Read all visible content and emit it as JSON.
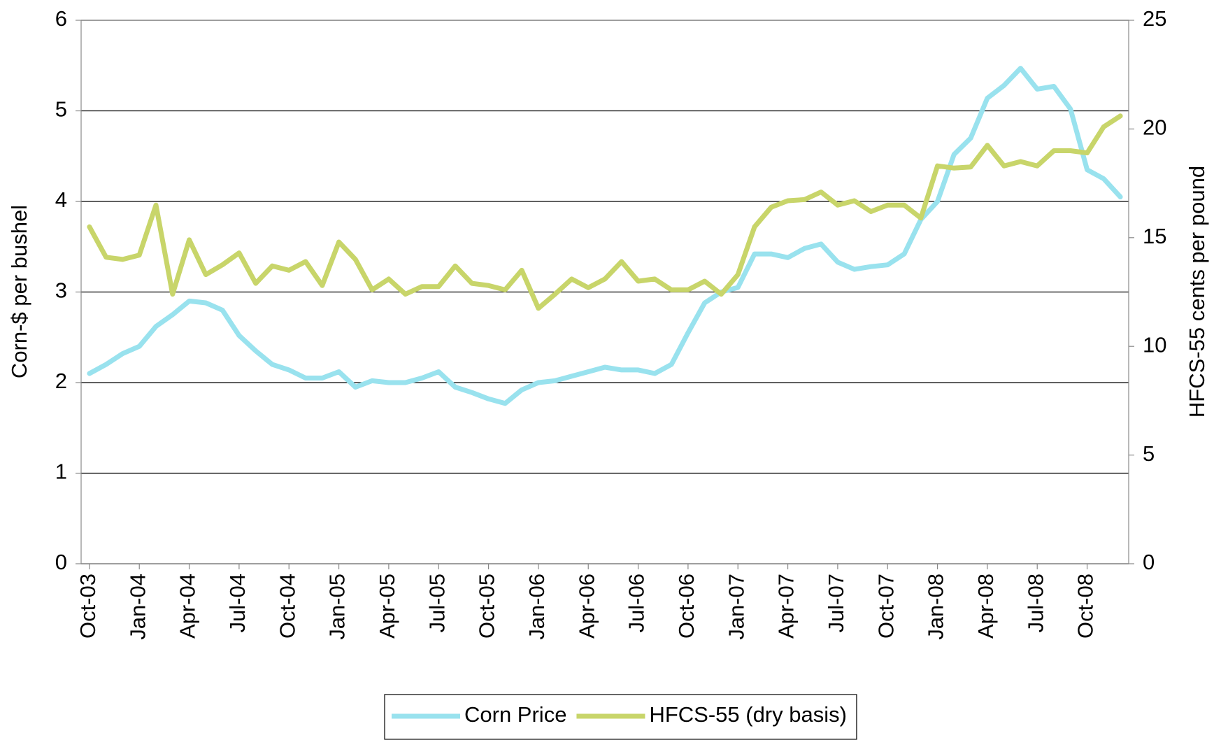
{
  "chart_data": {
    "type": "line",
    "categories": [
      "Oct-03",
      null,
      null,
      "Jan-04",
      null,
      null,
      "Apr-04",
      null,
      null,
      "Jul-04",
      null,
      null,
      "Oct-04",
      null,
      null,
      "Jan-05",
      null,
      null,
      "Apr-05",
      null,
      null,
      "Jul-05",
      null,
      null,
      "Oct-05",
      null,
      null,
      "Jan-06",
      null,
      null,
      "Apr-06",
      null,
      null,
      "Jul-06",
      null,
      null,
      "Oct-06",
      null,
      null,
      "Jan-07",
      null,
      null,
      "Apr-07",
      null,
      null,
      "Jul-07",
      null,
      null,
      "Oct-07",
      null,
      null,
      "Jan-08",
      null,
      null,
      "Apr-08",
      null,
      null,
      "Jul-08",
      null,
      null,
      "Oct-08",
      null,
      null
    ],
    "y_label": "Corn-$ per bushel",
    "y2_label": "HFCS-55 cents per pound",
    "ylim": [
      0,
      6
    ],
    "yticks": [
      0,
      1,
      2,
      3,
      4,
      5,
      6
    ],
    "y2lim": [
      0,
      25
    ],
    "y2ticks": [
      0,
      5,
      10,
      15,
      20,
      25
    ],
    "grid": true,
    "legend": "bottom",
    "series": [
      {
        "name": "Corn Price",
        "color": "#99e2ee",
        "values": [
          2.1,
          2.2,
          2.32,
          2.4,
          2.62,
          2.75,
          2.9,
          2.88,
          2.8,
          2.52,
          2.35,
          2.2,
          2.14,
          2.05,
          2.05,
          2.12,
          1.95,
          2.02,
          2.0,
          2.0,
          2.05,
          2.12,
          1.95,
          1.89,
          1.82,
          1.77,
          1.92,
          2.0,
          2.02,
          2.07,
          2.12,
          2.17,
          2.14,
          2.14,
          2.1,
          2.2,
          2.55,
          2.88,
          3.0,
          3.05,
          3.42,
          3.42,
          3.38,
          3.48,
          3.53,
          3.33,
          3.25,
          3.28,
          3.3,
          3.42,
          3.8,
          4.0,
          4.52,
          4.7,
          5.14,
          5.28,
          5.47,
          5.24,
          5.27,
          5.02,
          4.35,
          4.25,
          4.05
        ]
      },
      {
        "name": "HFCS-55 (dry basis)",
        "color": "#c8d56a",
        "axis": "y2",
        "values": [
          15.5,
          14.1,
          14.0,
          14.2,
          16.5,
          12.4,
          14.9,
          13.3,
          13.75,
          14.3,
          12.9,
          13.7,
          13.5,
          13.9,
          12.8,
          14.8,
          14.0,
          12.6,
          13.1,
          12.4,
          12.75,
          12.75,
          13.7,
          12.9,
          12.8,
          12.6,
          13.5,
          11.75,
          12.4,
          13.1,
          12.7,
          13.1,
          13.9,
          13.0,
          13.1,
          12.6,
          12.6,
          13.0,
          12.4,
          13.3,
          15.5,
          16.4,
          16.7,
          16.75,
          17.1,
          16.5,
          16.7,
          16.2,
          16.5,
          16.5,
          15.9,
          18.3,
          18.2,
          18.25,
          19.25,
          18.3,
          18.5,
          18.3,
          19.0,
          19.0,
          18.9,
          20.1,
          20.6
        ]
      }
    ]
  }
}
